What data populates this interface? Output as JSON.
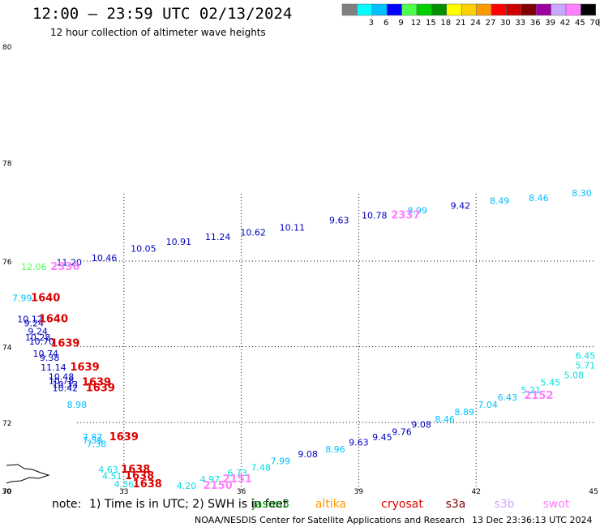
{
  "header": {
    "title": "12:00 – 23:59 UTC 02/13/2024",
    "subtitle": "12 hour collection of altimeter wave heights"
  },
  "colorbar": {
    "unit": "(ft)",
    "bins": [
      {
        "color": "#808080",
        "label": ""
      },
      {
        "color": "#00ffff",
        "label": "3"
      },
      {
        "color": "#00c0ff",
        "label": "6"
      },
      {
        "color": "#0000ff",
        "label": "9"
      },
      {
        "color": "#4dff4d",
        "label": "12"
      },
      {
        "color": "#00d000",
        "label": "15"
      },
      {
        "color": "#009000",
        "label": "18"
      },
      {
        "color": "#ffff00",
        "label": "21"
      },
      {
        "color": "#ffd000",
        "label": "24"
      },
      {
        "color": "#ff9900",
        "label": "27"
      },
      {
        "color": "#ff0000",
        "label": "30"
      },
      {
        "color": "#cc0000",
        "label": "33"
      },
      {
        "color": "#800000",
        "label": "36"
      },
      {
        "color": "#a000a0",
        "label": "39"
      },
      {
        "color": "#c8a8ff",
        "label": "42"
      },
      {
        "color": "#ff80ff",
        "label": "45"
      },
      {
        "color": "#000000",
        "label": "70"
      }
    ]
  },
  "axes": {
    "lat_labels": [
      "80",
      "78",
      "76",
      "74",
      "72",
      "70"
    ],
    "lon_labels": [
      "30",
      "33",
      "36",
      "39",
      "42",
      "45"
    ]
  },
  "map": {
    "wave_heights": [
      {
        "v": "12.06",
        "c": "#4dff4d",
        "lon": 30.7,
        "lat": 75.8
      },
      {
        "v": "11.20",
        "c": "#0000c0",
        "lon": 31.6,
        "lat": 75.9
      },
      {
        "v": "10.46",
        "c": "#0000c0",
        "lon": 32.5,
        "lat": 76.0
      },
      {
        "v": "10.05",
        "c": "#0000c0",
        "lon": 33.5,
        "lat": 76.2
      },
      {
        "v": "10.91",
        "c": "#0000c0",
        "lon": 34.4,
        "lat": 76.35
      },
      {
        "v": "11.24",
        "c": "#0000c0",
        "lon": 35.4,
        "lat": 76.45
      },
      {
        "v": "10.62",
        "c": "#0000c0",
        "lon": 36.3,
        "lat": 76.55
      },
      {
        "v": "10.11",
        "c": "#0000c0",
        "lon": 37.3,
        "lat": 76.65
      },
      {
        "v": "9.63",
        "c": "#0000c0",
        "lon": 38.5,
        "lat": 76.8
      },
      {
        "v": "10.78",
        "c": "#0000c0",
        "lon": 39.4,
        "lat": 76.9
      },
      {
        "v": "8.99",
        "c": "#00c0ff",
        "lon": 40.5,
        "lat": 77.0
      },
      {
        "v": "9.42",
        "c": "#0000c0",
        "lon": 41.6,
        "lat": 77.1
      },
      {
        "v": "8.49",
        "c": "#00c0ff",
        "lon": 42.6,
        "lat": 77.2
      },
      {
        "v": "8.46",
        "c": "#00c0ff",
        "lon": 43.6,
        "lat": 77.25
      },
      {
        "v": "8.30",
        "c": "#00c0ff",
        "lon": 44.7,
        "lat": 77.35
      },
      {
        "v": "7.99",
        "c": "#00c0ff",
        "lon": 30.4,
        "lat": 75.1
      },
      {
        "v": "10.12",
        "c": "#0000c0",
        "lon": 30.6,
        "lat": 74.6
      },
      {
        "v": "9.24",
        "c": "#0000c0",
        "lon": 30.7,
        "lat": 74.5
      },
      {
        "v": "9.24",
        "c": "#0000c0",
        "lon": 30.8,
        "lat": 74.3
      },
      {
        "v": "10.28",
        "c": "#0000c0",
        "lon": 30.8,
        "lat": 74.15
      },
      {
        "v": "10.70",
        "c": "#0000c0",
        "lon": 30.9,
        "lat": 74.05
      },
      {
        "v": "10.74",
        "c": "#0000c0",
        "lon": 31.0,
        "lat": 73.75
      },
      {
        "v": "9.38",
        "c": "#0000c0",
        "lon": 31.1,
        "lat": 73.65
      },
      {
        "v": "11.14",
        "c": "#0000c0",
        "lon": 31.2,
        "lat": 73.4
      },
      {
        "v": "10.48",
        "c": "#0000c0",
        "lon": 31.4,
        "lat": 73.15
      },
      {
        "v": "10.78",
        "c": "#0000c0",
        "lon": 31.4,
        "lat": 73.05
      },
      {
        "v": "10.33",
        "c": "#0000c0",
        "lon": 31.5,
        "lat": 72.95
      },
      {
        "v": "10.42",
        "c": "#0000c0",
        "lon": 31.5,
        "lat": 72.85
      },
      {
        "v": "8.98",
        "c": "#00c0ff",
        "lon": 31.8,
        "lat": 72.4
      },
      {
        "v": "7.87",
        "c": "#00c0ff",
        "lon": 32.2,
        "lat": 71.5
      },
      {
        "v": "7.39",
        "c": "#00c0ff",
        "lon": 32.2,
        "lat": 71.4
      },
      {
        "v": "7.38",
        "c": "#00c0ff",
        "lon": 32.3,
        "lat": 71.3
      },
      {
        "v": "4.63",
        "c": "#00e0e0",
        "lon": 32.6,
        "lat": 70.55
      },
      {
        "v": "4.51",
        "c": "#00e0e0",
        "lon": 32.7,
        "lat": 70.35
      },
      {
        "v": "4.36",
        "c": "#00e0e0",
        "lon": 33.0,
        "lat": 70.1
      },
      {
        "v": "4.20",
        "c": "#00e0e0",
        "lon": 34.6,
        "lat": 70.05
      },
      {
        "v": "4.97",
        "c": "#00e0e0",
        "lon": 35.2,
        "lat": 70.25
      },
      {
        "v": "6.73",
        "c": "#00e0e0",
        "lon": 35.9,
        "lat": 70.45
      },
      {
        "v": "7.48",
        "c": "#00e0e0",
        "lon": 36.5,
        "lat": 70.6
      },
      {
        "v": "7.99",
        "c": "#00c0ff",
        "lon": 37.0,
        "lat": 70.8
      },
      {
        "v": "9.08",
        "c": "#0000c0",
        "lon": 37.7,
        "lat": 71.0
      },
      {
        "v": "8.96",
        "c": "#00c0ff",
        "lon": 38.4,
        "lat": 71.15
      },
      {
        "v": "9.63",
        "c": "#0000c0",
        "lon": 39.0,
        "lat": 71.35
      },
      {
        "v": "9.45",
        "c": "#0000c0",
        "lon": 39.6,
        "lat": 71.5
      },
      {
        "v": "9.76",
        "c": "#0000c0",
        "lon": 40.1,
        "lat": 71.65
      },
      {
        "v": "9.08",
        "c": "#0000c0",
        "lon": 40.6,
        "lat": 71.85
      },
      {
        "v": "8.46",
        "c": "#00c0ff",
        "lon": 41.2,
        "lat": 72.0
      },
      {
        "v": "8.89",
        "c": "#00c0ff",
        "lon": 41.7,
        "lat": 72.2
      },
      {
        "v": "7.04",
        "c": "#00c0ff",
        "lon": 42.3,
        "lat": 72.4
      },
      {
        "v": "6.43",
        "c": "#00c0ff",
        "lon": 42.8,
        "lat": 72.6
      },
      {
        "v": "5.21",
        "c": "#00e0e0",
        "lon": 43.4,
        "lat": 72.8
      },
      {
        "v": "5.45",
        "c": "#00e0e0",
        "lon": 43.9,
        "lat": 73.0
      },
      {
        "v": "5.08",
        "c": "#00e0e0",
        "lon": 44.5,
        "lat": 73.2
      },
      {
        "v": "5.71",
        "c": "#00e0e0",
        "lon": 45.0,
        "lat": 73.45
      },
      {
        "v": "6.45",
        "c": "#00e0e0",
        "lon": 45.5,
        "lat": 73.7
      }
    ],
    "time_stamps": [
      {
        "t": "2336",
        "c": "#ff80ff",
        "lon": 31.5,
        "lat": 75.8
      },
      {
        "t": "2337",
        "c": "#ff80ff",
        "lon": 40.2,
        "lat": 76.9
      },
      {
        "t": "1640",
        "c": "#dd0000",
        "lon": 31.0,
        "lat": 75.1
      },
      {
        "t": "1640",
        "c": "#dd0000",
        "lon": 31.2,
        "lat": 74.6
      },
      {
        "t": "1639",
        "c": "#dd0000",
        "lon": 31.5,
        "lat": 74.0
      },
      {
        "t": "1639",
        "c": "#dd0000",
        "lon": 32.0,
        "lat": 73.4
      },
      {
        "t": "1639",
        "c": "#dd0000",
        "lon": 32.3,
        "lat": 73.0
      },
      {
        "t": "1639",
        "c": "#dd0000",
        "lon": 32.4,
        "lat": 72.85
      },
      {
        "t": "1639",
        "c": "#dd0000",
        "lon": 33.0,
        "lat": 71.5
      },
      {
        "t": "1638",
        "c": "#dd0000",
        "lon": 33.3,
        "lat": 70.55
      },
      {
        "t": "1638",
        "c": "#dd0000",
        "lon": 33.4,
        "lat": 70.35
      },
      {
        "t": "1638",
        "c": "#dd0000",
        "lon": 33.6,
        "lat": 70.1
      },
      {
        "t": "2150",
        "c": "#ff80ff",
        "lon": 35.4,
        "lat": 70.05
      },
      {
        "t": "2151",
        "c": "#ff80ff",
        "lon": 35.9,
        "lat": 70.25
      },
      {
        "t": "2152",
        "c": "#ff80ff",
        "lon": 43.6,
        "lat": 72.65
      }
    ]
  },
  "legend": {
    "note_prefix": "note:",
    "note_text": "1) Time is in UTC; 2) SWH is in feet",
    "satellites": [
      {
        "name": "jason3",
        "color": "#009000"
      },
      {
        "name": "altika",
        "color": "#ff9900"
      },
      {
        "name": "cryosat",
        "color": "#dd0000"
      },
      {
        "name": "s3a",
        "color": "#800000"
      },
      {
        "name": "s3b",
        "color": "#c8a8ff"
      },
      {
        "name": "swot",
        "color": "#ff80ff"
      }
    ]
  },
  "footer": {
    "credit": "NOAA/NESDIS Center for Satellite Applications and Research",
    "timestamp": "13 Dec 23:36:13 UTC 2024"
  }
}
